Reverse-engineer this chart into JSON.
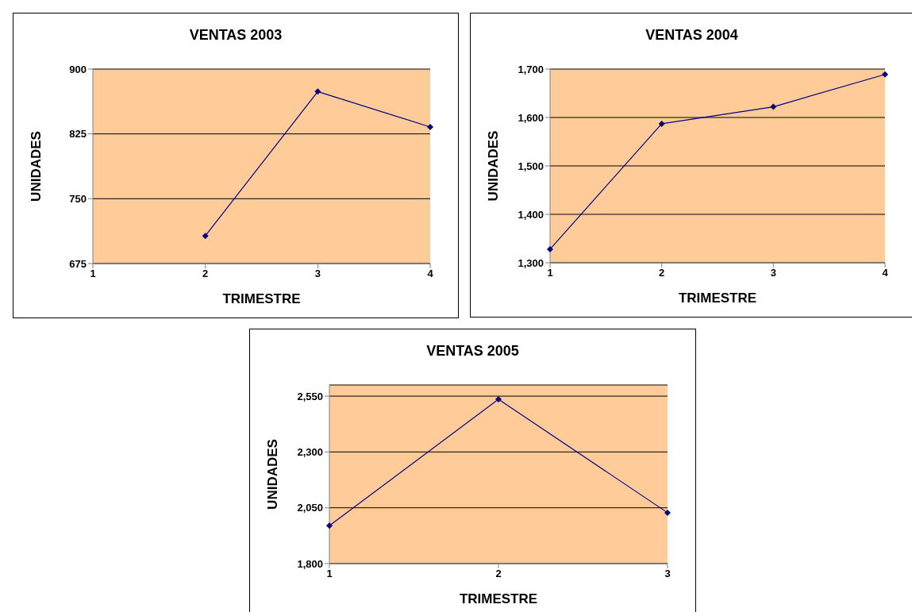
{
  "chart_data": [
    {
      "type": "line",
      "title": "VENTAS 2003",
      "xlabel": "TRIMESTRE",
      "ylabel": "UNIDADES",
      "categories": [
        "1",
        "2",
        "3",
        "4"
      ],
      "series": [
        {
          "color": "#000080",
          "values": [
            null,
            707,
            874,
            833
          ]
        }
      ],
      "ylim": [
        675,
        900
      ],
      "yticks": [
        675,
        750,
        825,
        900
      ],
      "grid": "y",
      "marker": "diamond",
      "legend": false
    },
    {
      "type": "line",
      "title": "VENTAS 2004",
      "xlabel": "TRIMESTRE",
      "ylabel": "UNIDADES",
      "categories": [
        "1",
        "2",
        "3",
        "4"
      ],
      "series": [
        {
          "color": "#000080",
          "values": [
            1328,
            1587,
            1622,
            1689
          ]
        }
      ],
      "ylim": [
        1300,
        1700
      ],
      "yticks": [
        {
          "value": 1300,
          "label": "1,300"
        },
        {
          "value": 1400,
          "label": "1,400"
        },
        {
          "value": 1500,
          "label": "1,500"
        },
        {
          "value": 1600,
          "label": "1,600"
        },
        {
          "value": 1700,
          "label": "1,700"
        }
      ],
      "grid": "y",
      "marker": "diamond",
      "legend": false
    },
    {
      "type": "line",
      "title": "VENTAS 2005",
      "xlabel": "TRIMESTRE",
      "ylabel": "UNIDADES",
      "categories": [
        "1",
        "2",
        "3"
      ],
      "series": [
        {
          "color": "#000080",
          "values": [
            1970,
            2536,
            2028
          ]
        }
      ],
      "ylim": [
        1800,
        2600
      ],
      "yticks": [
        {
          "value": 1800,
          "label": "1,800"
        },
        {
          "value": 2050,
          "label": "2,050"
        },
        {
          "value": 2300,
          "label": "2,300"
        },
        {
          "value": 2550,
          "label": "2,550"
        }
      ],
      "grid": "y",
      "marker": "diamond",
      "legend": false
    }
  ]
}
